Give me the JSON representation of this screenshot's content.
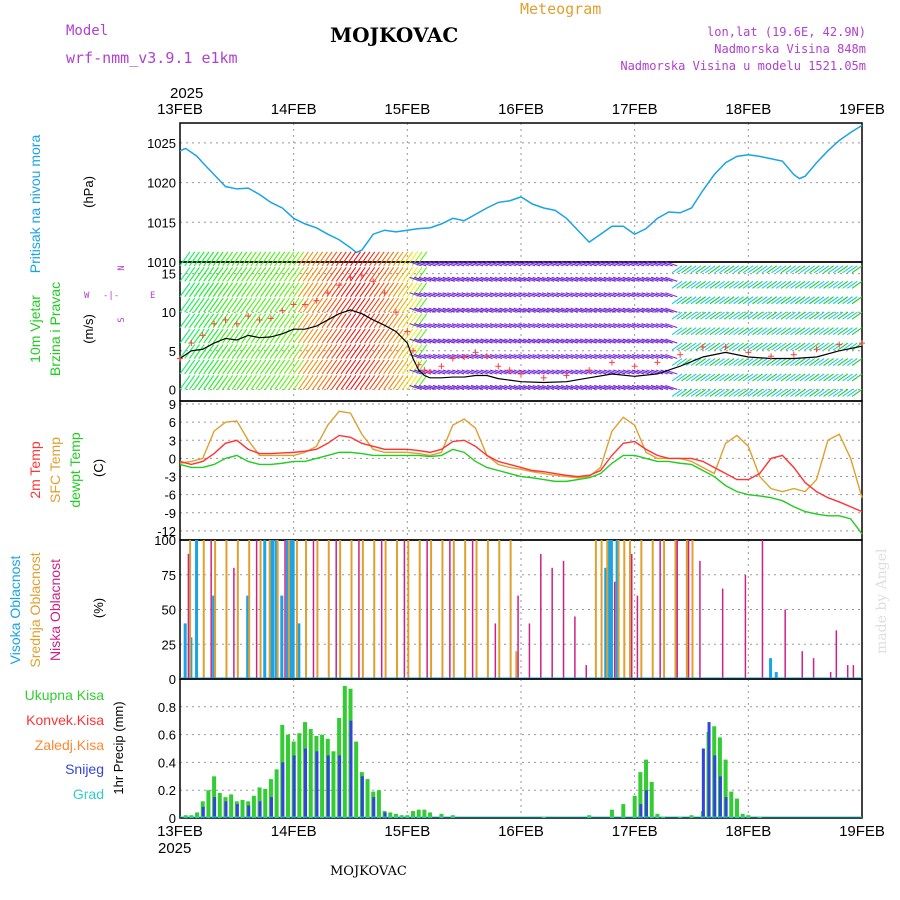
{
  "header": {
    "model_label": "Model",
    "model_name": "wrf-nmm_v3.9.1 e1km",
    "station": "MOJKOVAC",
    "product": "Meteogram",
    "lonlat": "lon,lat (19.6E, 42.9N)",
    "altitude": "Nadmorska Visina 848m",
    "model_altitude": "Nadmorska Visina u modelu 1521.05m",
    "year": "2025",
    "bottom_station": "MOJKOVAC",
    "credit": "made by Angel"
  },
  "colors": {
    "pressure": "#1aa3e6",
    "wind_speed": "#000000",
    "gust": "#ff4040",
    "temp_2m": "#ff3333",
    "temp_sfc": "#e0a030",
    "temp_dew": "#22cc22",
    "cloud_high": "#1aa3e6",
    "cloud_mid": "#e0a030",
    "cloud_low": "#cc2288",
    "precip_total": "#33cc33",
    "precip_conv": "#ff3333",
    "precip_frz": "#ff8833",
    "precip_snow": "#3344dd",
    "precip_grad": "#33cccc",
    "label_purple": "#b040d0"
  },
  "x_axis": {
    "ticks": [
      "13FEB",
      "14FEB",
      "15FEB",
      "16FEB",
      "17FEB",
      "18FEB",
      "19FEB"
    ]
  },
  "chart_data": [
    {
      "type": "line",
      "title": "Pritisak na nivou mora",
      "ylabel": "(hPa)",
      "yticks": [
        "1025",
        "1020",
        "1015",
        "1010"
      ],
      "ylim": [
        1010,
        1027.5
      ],
      "x_days": [
        0,
        0.05,
        0.1,
        0.15,
        0.2,
        0.3,
        0.4,
        0.5,
        0.6,
        0.7,
        0.8,
        0.9,
        1.0,
        1.1,
        1.2,
        1.3,
        1.4,
        1.5,
        1.55,
        1.6,
        1.65,
        1.7,
        1.8,
        1.9,
        2.0,
        2.1,
        2.2,
        2.3,
        2.4,
        2.5,
        2.6,
        2.7,
        2.8,
        2.9,
        3.0,
        3.1,
        3.2,
        3.3,
        3.4,
        3.5,
        3.6,
        3.7,
        3.8,
        3.9,
        4.0,
        4.1,
        4.2,
        4.3,
        4.4,
        4.5,
        4.6,
        4.7,
        4.8,
        4.9,
        5.0,
        5.1,
        5.2,
        5.3,
        5.4,
        5.45,
        5.5,
        5.6,
        5.7,
        5.8,
        5.9,
        6.0
      ],
      "series": [
        {
          "values": [
            1024,
            1024.3,
            1023.8,
            1023.3,
            1022.5,
            1021,
            1019.5,
            1019.2,
            1019.3,
            1018.5,
            1017.5,
            1016.8,
            1015.5,
            1014.8,
            1014.3,
            1013.5,
            1012.8,
            1011.8,
            1011.2,
            1011.5,
            1012.5,
            1013.5,
            1014,
            1013.8,
            1014,
            1014.2,
            1014.3,
            1014.8,
            1015.5,
            1015.2,
            1016,
            1016.8,
            1017.5,
            1017.7,
            1018.2,
            1017.3,
            1016.8,
            1016.5,
            1015.5,
            1014,
            1012.5,
            1013.5,
            1014.5,
            1014.5,
            1013.5,
            1014.2,
            1015.5,
            1016.3,
            1016.2,
            1016.8,
            1019,
            1021,
            1022.5,
            1023.3,
            1023.5,
            1023.3,
            1023,
            1022.7,
            1021,
            1020.5,
            1020.8,
            1022.5,
            1024,
            1025.3,
            1026.3,
            1027.2
          ]
        }
      ]
    },
    {
      "type": "line",
      "title": "10m Vjetar Brzina i Pravac",
      "ylabel": "(m/s)",
      "compass": {
        "n": "N",
        "s": "S",
        "e": "E",
        "w": "W",
        "sym": "-|-"
      },
      "yticks": [
        "15",
        "10",
        "5",
        "0"
      ],
      "ylim": [
        -1.5,
        16.5
      ],
      "x_days": [
        0,
        0.1,
        0.2,
        0.3,
        0.4,
        0.5,
        0.6,
        0.7,
        0.8,
        0.9,
        1.0,
        1.1,
        1.2,
        1.3,
        1.4,
        1.5,
        1.6,
        1.7,
        1.8,
        1.9,
        2.0,
        2.05,
        2.1,
        2.15,
        2.2,
        2.3,
        2.4,
        2.5,
        2.6,
        2.7,
        2.8,
        2.9,
        3.0,
        3.2,
        3.4,
        3.6,
        3.8,
        4.0,
        4.2,
        4.4,
        4.6,
        4.8,
        5.0,
        5.2,
        5.4,
        5.6,
        5.8,
        6.0
      ],
      "series": [
        {
          "name": "brzina",
          "values": [
            4,
            5,
            5.2,
            6,
            6.6,
            6.4,
            7,
            6.7,
            6.8,
            7.2,
            7.8,
            7.8,
            8.2,
            9,
            9.8,
            10.3,
            9.8,
            9,
            8.3,
            7.5,
            6,
            4,
            2.5,
            1.8,
            1.5,
            1.5,
            1.6,
            1.6,
            1.8,
            1.8,
            1.4,
            1.2,
            1,
            0.9,
            1,
            1.5,
            2,
            1.7,
            2,
            3,
            4.2,
            4.8,
            4.2,
            4,
            4,
            4.2,
            5,
            5.6
          ]
        },
        {
          "name": "udari",
          "values": [
            4,
            6,
            7,
            8.5,
            9,
            8.5,
            9.5,
            9,
            9.2,
            10.2,
            11,
            11,
            11.5,
            12.5,
            13.5,
            14.5,
            14.8,
            14,
            12.5,
            10,
            7.5,
            5,
            3.2,
            2.5,
            2.3,
            3,
            4,
            4.2,
            4.8,
            4.3,
            3,
            2.5,
            2,
            1.5,
            1.8,
            2.5,
            3.5,
            3,
            3.5,
            4.5,
            5.5,
            5.5,
            4.8,
            4.3,
            4.5,
            5.2,
            5.8,
            6
          ]
        }
      ]
    },
    {
      "type": "line",
      "title": "2m Temp / SFC Temp / dewpt Temp",
      "ylabel": "(C)",
      "yticks": [
        "9",
        "6",
        "3",
        "0",
        "-3",
        "-6",
        "-9",
        "-12"
      ],
      "ylim": [
        -13.5,
        9.5
      ],
      "x_days": [
        0,
        0.1,
        0.2,
        0.3,
        0.4,
        0.5,
        0.6,
        0.7,
        0.8,
        0.9,
        1.0,
        1.1,
        1.2,
        1.3,
        1.4,
        1.5,
        1.6,
        1.7,
        1.8,
        1.9,
        2.0,
        2.1,
        2.2,
        2.3,
        2.4,
        2.5,
        2.6,
        2.7,
        2.8,
        2.9,
        3.0,
        3.1,
        3.2,
        3.3,
        3.4,
        3.5,
        3.6,
        3.7,
        3.8,
        3.9,
        4.0,
        4.1,
        4.2,
        4.3,
        4.4,
        4.5,
        4.6,
        4.7,
        4.8,
        4.9,
        5.0,
        5.1,
        5.2,
        5.3,
        5.4,
        5.5,
        5.6,
        5.7,
        5.8,
        5.9,
        6.0
      ],
      "series": [
        {
          "name": "2m Temp",
          "values": [
            -0.5,
            -1,
            -0.5,
            0.8,
            2.5,
            3,
            1.5,
            0.8,
            0.8,
            0.9,
            1,
            1.2,
            1.5,
            2.5,
            3.8,
            3.5,
            2.5,
            2,
            1.5,
            1.5,
            1.5,
            1.3,
            1,
            1.5,
            2.8,
            3,
            2,
            0.5,
            -0.5,
            -1,
            -1.5,
            -2,
            -2.2,
            -2.5,
            -2.8,
            -3,
            -2.8,
            -2,
            0.5,
            2.5,
            2.8,
            1.5,
            0.5,
            0,
            0,
            0,
            -0.5,
            -1.5,
            -2.5,
            -3.5,
            -3.5,
            -2.5,
            0,
            0.5,
            -1.5,
            -4,
            -5.5,
            -6.5,
            -7.2,
            -8,
            -8.8
          ]
        },
        {
          "name": "SFC Temp",
          "values": [
            -0.8,
            -0.5,
            0,
            4.5,
            6,
            6.2,
            3,
            0.5,
            0.5,
            0.5,
            0.5,
            1,
            2,
            5.5,
            7.8,
            7.5,
            4,
            1.5,
            1,
            1,
            1,
            0.8,
            0.5,
            1,
            5.5,
            6.5,
            5,
            0.5,
            -1,
            -1.5,
            -1.8,
            -2.2,
            -2.5,
            -2.8,
            -3,
            -3.2,
            -3,
            -1.5,
            4.5,
            6.8,
            5.5,
            1,
            0,
            0,
            0,
            -0.5,
            -1.5,
            -2.5,
            2.5,
            3.8,
            2,
            -3,
            -5,
            -5.5,
            -5,
            -5.5,
            -3.5,
            3,
            4,
            0,
            -6.5
          ]
        },
        {
          "name": "dewpt Temp",
          "values": [
            -1,
            -1.5,
            -1.5,
            -1,
            0,
            0.5,
            -0.5,
            -1,
            -1,
            -0.8,
            -0.5,
            -0.5,
            0,
            0.5,
            1,
            1,
            0.8,
            0.5,
            0.5,
            0.5,
            0.5,
            0.5,
            0.3,
            0.5,
            1.5,
            1,
            -0.5,
            -1.5,
            -2,
            -2.5,
            -3,
            -3.2,
            -3.5,
            -3.8,
            -3.8,
            -3.5,
            -3.2,
            -2.5,
            -0.8,
            0.5,
            0.5,
            0,
            -0.5,
            -0.5,
            -0.8,
            -1,
            -2,
            -3,
            -4.5,
            -5.5,
            -6,
            -6.2,
            -6.5,
            -7,
            -8,
            -8.8,
            -9.2,
            -9.5,
            -9.5,
            -10,
            -12.5
          ]
        }
      ]
    },
    {
      "type": "bar",
      "title": "Visoka Oblacnost / Srednja Oblacnost / Niska Oblacnost",
      "ylabel": "(%)",
      "yticks": [
        "100",
        "75",
        "50",
        "25",
        "0"
      ],
      "ylim": [
        0,
        100
      ],
      "series": [
        {
          "name": "Visoka Oblacnost",
          "x_days": [
            0.05,
            0.1,
            0.15,
            0.3,
            0.6,
            0.75,
            0.8,
            0.82,
            0.85,
            0.9,
            0.95,
            0.98,
            1.0,
            1.05,
            2.0,
            2.1,
            2.2,
            3.5,
            3.75,
            3.78,
            3.8,
            3.85,
            4.6,
            4.7,
            5.2,
            5.25
          ],
          "values": [
            40,
            30,
            100,
            60,
            60,
            100,
            100,
            100,
            100,
            60,
            100,
            100,
            100,
            40,
            0,
            0,
            0,
            0,
            80,
            100,
            100,
            100,
            0,
            0,
            15,
            5
          ]
        },
        {
          "name": "Srednja Oblacnost",
          "x_days": [
            0.08,
            0.2,
            0.3,
            0.4,
            0.5,
            0.6,
            0.7,
            0.78,
            0.85,
            0.95,
            1.02,
            1.1,
            1.2,
            1.3,
            1.4,
            1.5,
            1.6,
            1.7,
            1.8,
            1.9,
            2.0,
            2.1,
            2.2,
            2.3,
            2.4,
            2.5,
            2.6,
            2.7,
            2.8,
            2.9,
            2.95,
            3.65,
            3.7,
            3.75,
            3.85,
            3.9,
            3.95,
            4.05,
            4.15,
            4.25,
            4.35,
            4.45,
            4.5
          ],
          "values": [
            100,
            100,
            100,
            100,
            100,
            100,
            100,
            100,
            100,
            100,
            100,
            100,
            100,
            100,
            100,
            100,
            100,
            100,
            100,
            100,
            100,
            100,
            100,
            100,
            100,
            100,
            100,
            100,
            100,
            100,
            20,
            100,
            100,
            100,
            100,
            100,
            100,
            100,
            100,
            100,
            100,
            100,
            100
          ]
        },
        {
          "name": "Niska Oblacnost",
          "x_days": [
            0.05,
            0.25,
            0.45,
            0.65,
            0.9,
            1.15,
            1.35,
            1.55,
            1.75,
            1.95,
            2.15,
            2.35,
            2.55,
            2.75,
            2.95,
            3.05,
            3.15,
            3.25,
            3.35,
            3.45,
            3.55,
            3.8,
            3.95,
            4.0,
            4.2,
            4.35,
            4.45,
            4.55,
            4.75,
            4.95,
            5.1,
            5.3,
            5.45,
            5.55,
            5.7,
            5.75,
            5.85,
            5.9
          ],
          "values": [
            90,
            100,
            80,
            100,
            100,
            100,
            100,
            100,
            100,
            100,
            100,
            100,
            100,
            40,
            60,
            40,
            90,
            80,
            85,
            45,
            10,
            70,
            90,
            60,
            100,
            100,
            100,
            85,
            65,
            75,
            100,
            50,
            20,
            15,
            5,
            35,
            10,
            10
          ]
        }
      ]
    },
    {
      "type": "bar",
      "title": "Ukupna Kisa / Konvek.Kisa / Zaledj.Kisa / Snijeg / Grad",
      "ylabel": "1hr Precip (mm)",
      "yticks": [
        "0.8",
        "0.6",
        "0.4",
        "0.2",
        "0"
      ],
      "ylim": [
        0,
        1.0
      ],
      "legend": [
        "Ukupna Kisa",
        "Konvek.Kisa",
        "Zaledj.Kisa",
        "Snijeg",
        "Grad"
      ],
      "series": [
        {
          "name": "Ukupna Kisa",
          "x_days": [
            0.05,
            0.1,
            0.15,
            0.2,
            0.25,
            0.3,
            0.35,
            0.4,
            0.45,
            0.5,
            0.55,
            0.6,
            0.65,
            0.7,
            0.75,
            0.8,
            0.85,
            0.9,
            0.95,
            1.0,
            1.05,
            1.1,
            1.15,
            1.2,
            1.25,
            1.3,
            1.35,
            1.4,
            1.45,
            1.5,
            1.55,
            1.6,
            1.65,
            1.7,
            1.75,
            1.8,
            1.85,
            1.9,
            1.95,
            2.0,
            2.05,
            2.1,
            2.15,
            2.2,
            2.3,
            2.4,
            2.5,
            2.6,
            2.7,
            2.8,
            2.9,
            3.0,
            3.2,
            3.4,
            3.6,
            3.8,
            3.9,
            4.0,
            4.05,
            4.1,
            4.15,
            4.2,
            4.25,
            4.3,
            4.4,
            4.5,
            4.6,
            4.65,
            4.7,
            4.75,
            4.8,
            4.85,
            4.9,
            4.95,
            5.0,
            5.1,
            5.2,
            5.4,
            5.6,
            5.8,
            6.0
          ],
          "values": [
            0.02,
            0.02,
            0.04,
            0.12,
            0.2,
            0.3,
            0.18,
            0.15,
            0.17,
            0.12,
            0.13,
            0.12,
            0.16,
            0.22,
            0.21,
            0.28,
            0.35,
            0.67,
            0.6,
            0.55,
            0.61,
            0.69,
            0.64,
            0.59,
            0.6,
            0.57,
            0.48,
            0.72,
            0.95,
            0.93,
            0.55,
            0.33,
            0.28,
            0.19,
            0.2,
            0.05,
            0.04,
            0.03,
            0.02,
            0.02,
            0.05,
            0.06,
            0.06,
            0.04,
            0.03,
            0.02,
            0.0,
            0.0,
            0.0,
            0.0,
            0.0,
            0.0,
            0.01,
            0.0,
            0.02,
            0.06,
            0.1,
            0.16,
            0.33,
            0.42,
            0.26,
            0.03,
            0.01,
            0.0,
            0.01,
            0.02,
            0.05,
            0.62,
            0.66,
            0.58,
            0.42,
            0.19,
            0.14,
            0.03,
            0.02,
            0.01,
            0.0,
            0.0,
            0.0,
            0.0,
            0.0
          ]
        },
        {
          "name": "Snijeg",
          "x_days": [
            0.2,
            0.3,
            0.4,
            0.5,
            0.6,
            0.7,
            0.8,
            0.9,
            1.0,
            1.1,
            1.2,
            1.3,
            1.4,
            1.5,
            1.6,
            1.7,
            1.8,
            4.05,
            4.1,
            4.6,
            4.65,
            4.7,
            4.75,
            4.8
          ],
          "values": [
            0.08,
            0.15,
            0.12,
            0.1,
            0.09,
            0.12,
            0.15,
            0.4,
            0.45,
            0.5,
            0.48,
            0.45,
            0.45,
            0.7,
            0.3,
            0.15,
            0.04,
            0.1,
            0.2,
            0.5,
            0.69,
            0.45,
            0.3,
            0.15
          ]
        }
      ]
    }
  ]
}
